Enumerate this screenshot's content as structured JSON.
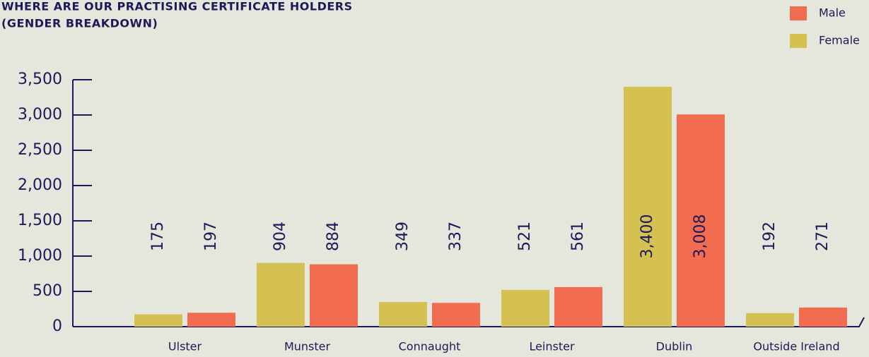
{
  "chart_data": {
    "type": "bar",
    "title_lines": [
      "WHERE ARE OUR PRACTISING CERTIFICATE HOLDERS",
      "(GENDER BREAKDOWN)"
    ],
    "categories": [
      "Ulster",
      "Munster",
      "Connaught",
      "Leinster",
      "Dublin",
      "Outside Ireland"
    ],
    "series": [
      {
        "name": "Female",
        "color": "#d5c152",
        "values": [
          175,
          904,
          349,
          521,
          3400,
          192
        ],
        "value_labels": [
          "175",
          "904",
          "349",
          "521",
          "3,400",
          "192"
        ]
      },
      {
        "name": "Male",
        "color": "#f26c50",
        "values": [
          197,
          884,
          337,
          561,
          3008,
          271
        ],
        "value_labels": [
          "197",
          "884",
          "337",
          "561",
          "3,008",
          "271"
        ]
      }
    ],
    "ylim": [
      0,
      3500
    ],
    "yticks": [
      0,
      500,
      {
        "value": 1000,
        "label": "1,000"
      },
      {
        "value": 1500,
        "label": "1,500"
      },
      {
        "value": 2000,
        "label": "2,000"
      },
      {
        "value": 2500,
        "label": "2,500"
      },
      {
        "value": 3000,
        "label": "3,000"
      },
      {
        "value": 3500,
        "label": "3,500"
      }
    ],
    "legend": "top-right"
  }
}
